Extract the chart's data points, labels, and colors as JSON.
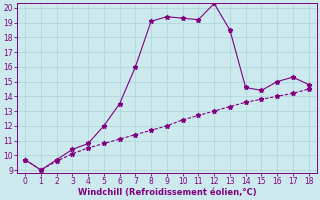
{
  "xlabel": "Windchill (Refroidissement éolien,°C)",
  "x_line1": [
    0,
    1,
    2,
    3,
    4,
    5,
    6,
    7,
    8,
    9,
    10,
    11,
    12,
    13,
    14,
    15,
    16,
    17,
    18
  ],
  "y_line1": [
    9.7,
    9.0,
    9.7,
    10.4,
    10.8,
    12.0,
    13.5,
    16.0,
    19.1,
    19.4,
    19.3,
    19.2,
    20.3,
    18.5,
    14.6,
    14.4,
    15.0,
    15.3,
    14.8
  ],
  "x_line2": [
    0,
    1,
    2,
    3,
    4,
    5,
    6,
    7,
    8,
    9,
    10,
    11,
    12,
    13,
    14,
    15,
    16,
    17,
    18
  ],
  "y_line2": [
    9.7,
    9.0,
    9.6,
    10.1,
    10.5,
    10.8,
    11.1,
    11.4,
    11.7,
    12.0,
    12.4,
    12.7,
    13.0,
    13.3,
    13.6,
    13.8,
    14.0,
    14.2,
    14.5
  ],
  "line_color": "#800080",
  "bg_color": "#cceaed",
  "grid_color": "#b0d8dc",
  "ylim": [
    9,
    20
  ],
  "xlim": [
    -0.5,
    18.5
  ],
  "yticks": [
    9,
    10,
    11,
    12,
    13,
    14,
    15,
    16,
    17,
    18,
    19,
    20
  ],
  "xticks": [
    0,
    1,
    2,
    3,
    4,
    5,
    6,
    7,
    8,
    9,
    10,
    11,
    12,
    13,
    14,
    15,
    16,
    17,
    18
  ],
  "tick_fontsize": 5.5,
  "xlabel_fontsize": 6.0
}
